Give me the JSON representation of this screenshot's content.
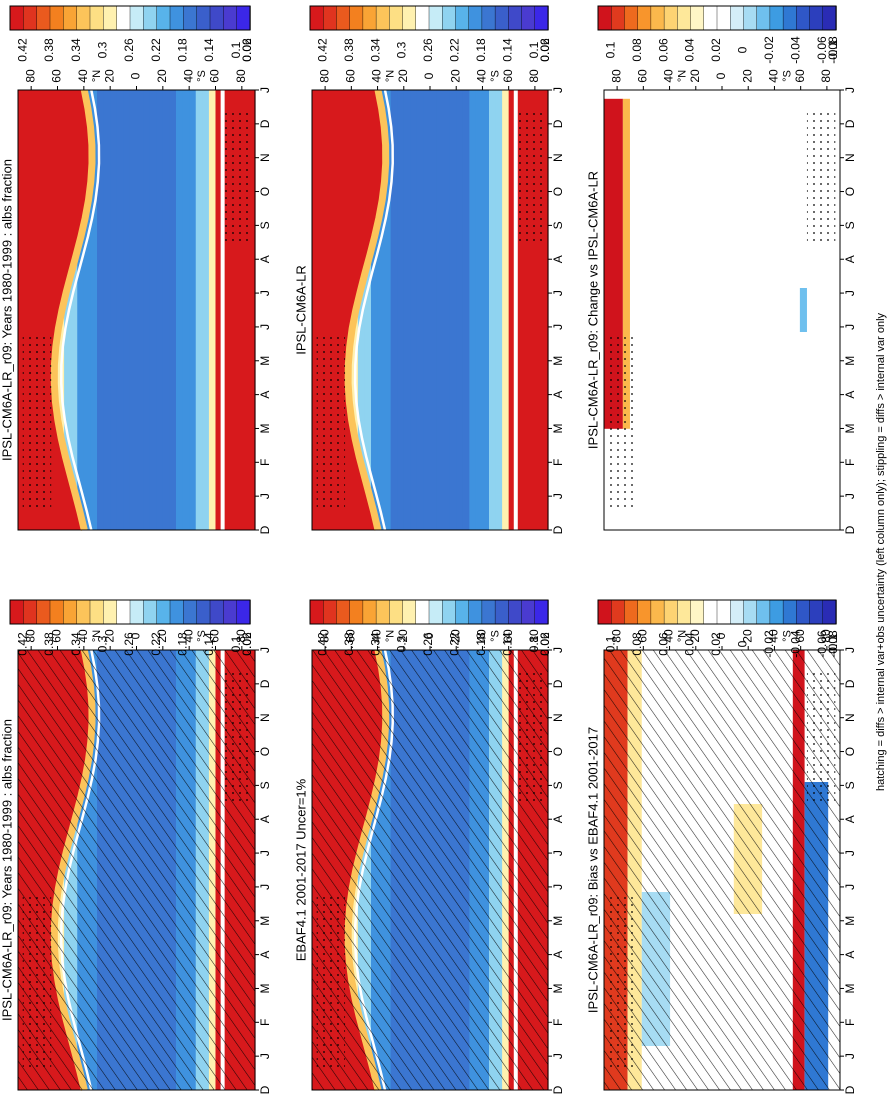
{
  "figure": {
    "footnote": "hatching = diffs > internal var+obs uncertainty (left column only); stippling = diffs > internal var only"
  },
  "axes": {
    "months": [
      "D",
      "J",
      "F",
      "M",
      "A",
      "M",
      "J",
      "J",
      "A",
      "S",
      "O",
      "N",
      "D",
      "J"
    ],
    "lat_ticks": [
      "80",
      "60",
      "40",
      "20",
      "0",
      "20",
      "40",
      "60",
      "80"
    ],
    "lat_unit_n": "°N",
    "lat_unit_s": "°S"
  },
  "colorbars": {
    "albs": [
      "0.42",
      "0.38",
      "0.34",
      "0.3",
      "0.26",
      "0.22",
      "0.18",
      "0.14",
      "0.1",
      "0.06",
      "0.02"
    ],
    "diff": [
      "0.1",
      "0.08",
      "0.06",
      "0.04",
      "0.02",
      "0",
      "-0.02",
      "-0.04",
      "-0.06",
      "-0.08",
      "-0.1"
    ],
    "albs_colors": [
      "#d7191c",
      "#e0341f",
      "#ea5a1e",
      "#f3801f",
      "#f9a435",
      "#fcc45a",
      "#fddf84",
      "#fff1b0",
      "#ffffff",
      "#c6ecf7",
      "#8fd3f0",
      "#58b3ea",
      "#3f92df",
      "#3b76d1",
      "#3a5fcb",
      "#3f49c9",
      "#4a3bd0",
      "#3b27e8"
    ],
    "diff_colors": [
      "#d0131c",
      "#e03a1e",
      "#ee6a1e",
      "#f8952c",
      "#fbb84c",
      "#fdd373",
      "#fee89a",
      "#fff6c6",
      "#ffffff",
      "#ffffff",
      "#d4eef8",
      "#a7dcf3",
      "#6fc0ee",
      "#3d9ce2",
      "#2f78d3",
      "#2f57c7",
      "#2c3fbd",
      "#2a2cb5"
    ]
  },
  "panels": [
    {
      "id": "top-left",
      "title": "IPSL-CM6A-LR_r09: Years 1980-1999 : albs fraction"
    },
    {
      "id": "top-right",
      "title": "IPSL-CM6A-LR_r09: Years 1980-1999 : albs fraction"
    },
    {
      "id": "mid-left",
      "title": "EBAF4.1 2001-2017 Uncer=1%"
    },
    {
      "id": "mid-right",
      "title": "IPSL-CM6A-LR"
    },
    {
      "id": "bot-left",
      "title": "IPSL-CM6A-LR_r09: Bias vs EBAF4.1 2001-2017"
    },
    {
      "id": "bot-right",
      "title": "IPSL-CM6A-LR_r09: Change vs IPSL-CM6A-LR"
    }
  ],
  "chart_data": [
    {
      "type": "heatmap",
      "title": "IPSL-CM6A-LR_r09: Years 1980-1999 : albs fraction",
      "x": [
        "D",
        "J",
        "F",
        "M",
        "A",
        "M",
        "J",
        "J",
        "A",
        "S",
        "O",
        "N",
        "D",
        "J"
      ],
      "y_ticks": [
        "80",
        "60",
        "40",
        "20",
        "0",
        "20",
        "40",
        "60",
        "80"
      ],
      "ylabel_n": "°N",
      "ylabel_s": "°S",
      "colorbar": [
        "0.42",
        "0.38",
        "0.34",
        "0.3",
        "0.26",
        "0.22",
        "0.18",
        "0.14",
        "0.1",
        "0.06",
        "0.02"
      ],
      "description_values": {
        "polar_value": 0.43,
        "midlat_value": 0.2,
        "tropics_value": 0.12
      },
      "hatching": true,
      "stippling": true
    },
    {
      "type": "heatmap",
      "title": "IPSL-CM6A-LR_r09: Years 1980-1999 : albs fraction",
      "x": [
        "D",
        "J",
        "F",
        "M",
        "A",
        "M",
        "J",
        "J",
        "A",
        "S",
        "O",
        "N",
        "D",
        "J"
      ],
      "y_ticks": [
        "80",
        "60",
        "40",
        "20",
        "0",
        "20",
        "40",
        "60",
        "80"
      ],
      "colorbar": [
        "0.42",
        "0.38",
        "0.34",
        "0.3",
        "0.26",
        "0.22",
        "0.18",
        "0.14",
        "0.1",
        "0.06",
        "0.02"
      ],
      "hatching": false,
      "stippling": true
    },
    {
      "type": "heatmap",
      "title": "EBAF4.1 2001-2017 Uncer=1%",
      "x": [
        "D",
        "J",
        "F",
        "M",
        "A",
        "M",
        "J",
        "J",
        "A",
        "S",
        "O",
        "N",
        "D",
        "J"
      ],
      "y_ticks": [
        "80",
        "60",
        "40",
        "20",
        "0",
        "20",
        "40",
        "60",
        "80"
      ],
      "colorbar": [
        "0.42",
        "0.38",
        "0.34",
        "0.3",
        "0.26",
        "0.22",
        "0.18",
        "0.14",
        "0.1",
        "0.06",
        "0.02"
      ],
      "hatching": true,
      "stippling": true
    },
    {
      "type": "heatmap",
      "title": "IPSL-CM6A-LR",
      "x": [
        "D",
        "J",
        "F",
        "M",
        "A",
        "M",
        "J",
        "J",
        "A",
        "S",
        "O",
        "N",
        "D",
        "J"
      ],
      "y_ticks": [
        "80",
        "60",
        "40",
        "20",
        "0",
        "20",
        "40",
        "60",
        "80"
      ],
      "colorbar": [
        "0.42",
        "0.38",
        "0.34",
        "0.3",
        "0.26",
        "0.22",
        "0.18",
        "0.14",
        "0.1",
        "0.06",
        "0.02"
      ],
      "hatching": false,
      "stippling": true
    },
    {
      "type": "heatmap",
      "title": "IPSL-CM6A-LR_r09: Bias vs EBAF4.1 2001-2017",
      "x": [
        "D",
        "J",
        "F",
        "M",
        "A",
        "M",
        "J",
        "J",
        "A",
        "S",
        "O",
        "N",
        "D",
        "J"
      ],
      "y_ticks": [
        "80",
        "60",
        "40",
        "20",
        "0",
        "20",
        "40",
        "60",
        "80"
      ],
      "colorbar": [
        "0.1",
        "0.08",
        "0.06",
        "0.04",
        "0.02",
        "0",
        "-0.02",
        "-0.04",
        "-0.06",
        "-0.08",
        "-0.1"
      ],
      "hatching": true,
      "stippling": true
    },
    {
      "type": "heatmap",
      "title": "IPSL-CM6A-LR_r09: Change vs IPSL-CM6A-LR",
      "x": [
        "D",
        "J",
        "F",
        "M",
        "A",
        "M",
        "J",
        "J",
        "A",
        "S",
        "O",
        "N",
        "D",
        "J"
      ],
      "y_ticks": [
        "80",
        "60",
        "40",
        "20",
        "0",
        "20",
        "40",
        "60",
        "80"
      ],
      "colorbar": [
        "0.1",
        "0.08",
        "0.06",
        "0.04",
        "0.02",
        "0",
        "-0.02",
        "-0.04",
        "-0.06",
        "-0.08",
        "-0.1"
      ],
      "hatching": false,
      "stippling": true
    }
  ]
}
